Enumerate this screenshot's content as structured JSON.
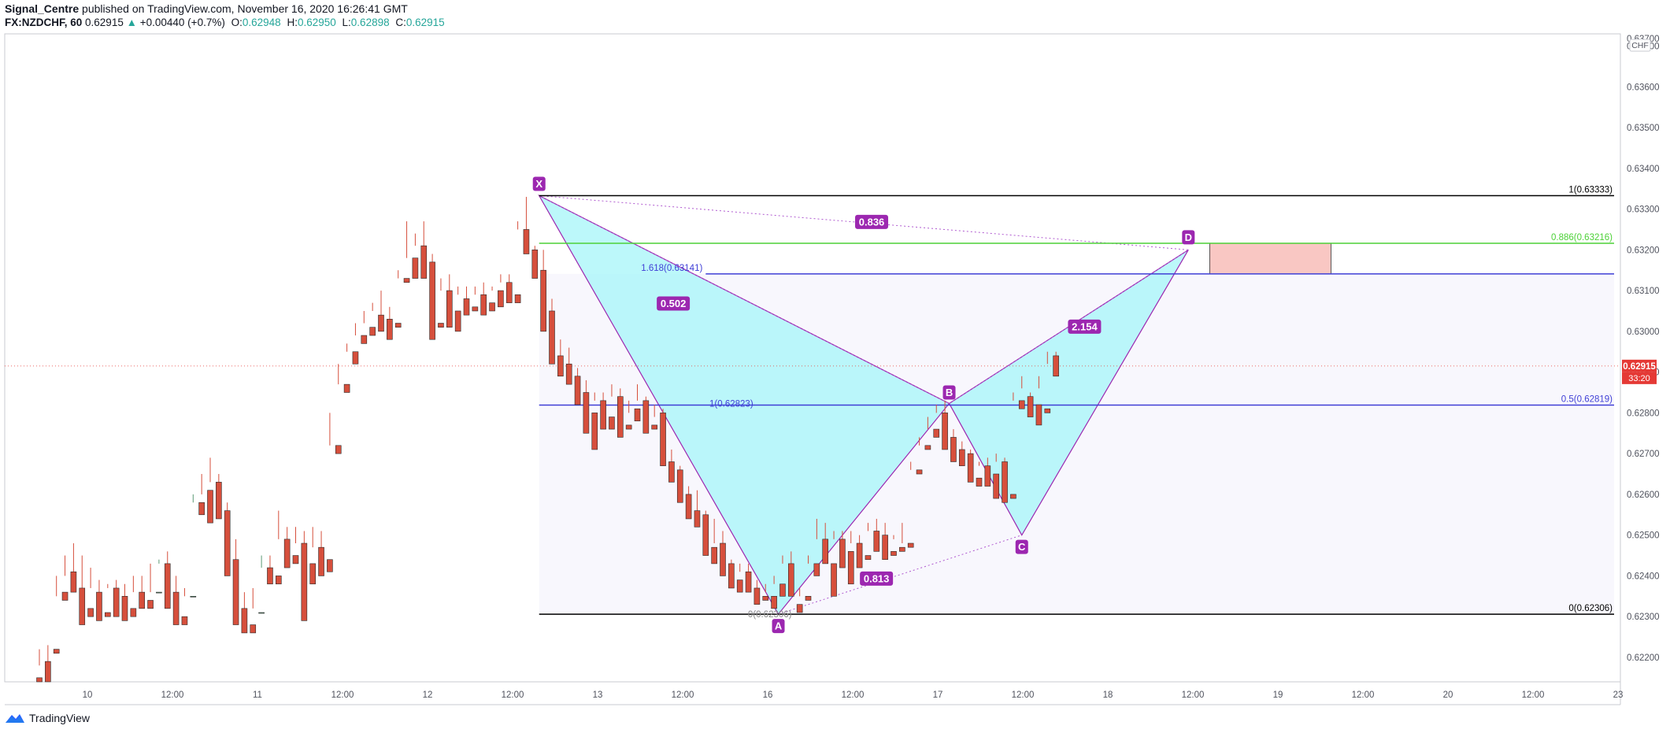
{
  "header": {
    "publisher": "Signal_Centre",
    "published_text": "published on TradingView.com, November 16, 2020 16:26:41 GMT",
    "symbol": "FX:NZDCHF, 60",
    "last": "0.62915",
    "change": "+0.00440 (+0.7%)",
    "open_label": "O:",
    "open": "0.62948",
    "high_label": "H:",
    "high": "0.62950",
    "low_label": "L:",
    "low": "0.62898",
    "close_label": "C:",
    "close": "0.62915"
  },
  "footer": {
    "brand": "TradingView",
    "logo_icon": "tradingview-logo-icon"
  },
  "colors": {
    "up": "#5b9a74",
    "down": "#d64f3c",
    "pattern_fill": "#9ff5f8",
    "pattern_stroke": "#9c27b0",
    "label_bg": "#9c27b0",
    "fib_black": "#000000",
    "fib_green": "#4cd137",
    "fib_blue": "#3f3fd6",
    "target_box": "#f9c7c3",
    "price_line": "#e53935"
  },
  "chart_data": {
    "type": "candlestick",
    "currency": "CHF",
    "ylim": [
      0.6214,
      0.6373
    ],
    "y_ticks": [
      0.622,
      0.623,
      0.624,
      0.625,
      0.626,
      0.627,
      0.628,
      0.629,
      0.63,
      0.631,
      0.632,
      0.633,
      0.634,
      0.635,
      0.636,
      0.637
    ],
    "y_tick_labels": [
      "0.62200",
      "0.62300",
      "0.62400",
      "0.62500",
      "0.62600",
      "0.62700",
      "0.62800",
      "0.62900",
      "0.63000",
      "0.63100",
      "0.63200",
      "0.63300",
      "0.63400",
      "0.63500",
      "0.63600",
      "0.63700"
    ],
    "x_labels": [
      "10",
      "12:00",
      "11",
      "12:00",
      "12",
      "12:00",
      "13",
      "12:00",
      "16",
      "12:00",
      "17",
      "12:00",
      "18",
      "12:00",
      "19",
      "12:00",
      "20",
      "12:00",
      "23"
    ],
    "current_price": "0.62915",
    "countdown": "33:20",
    "grid": false,
    "candles": [
      [
        0.6215,
        0.6222,
        0.6218,
        0.6214
      ],
      [
        0.6219,
        0.6223,
        0.6214,
        0.6214
      ],
      [
        0.6222,
        0.624,
        0.6235,
        0.6221
      ],
      [
        0.6236,
        0.6245,
        0.624,
        0.6234
      ],
      [
        0.6241,
        0.6248,
        0.6238,
        0.6236
      ],
      [
        0.6237,
        0.6245,
        0.6232,
        0.6228
      ],
      [
        0.6232,
        0.6242,
        0.6237,
        0.623
      ],
      [
        0.6236,
        0.6239,
        0.6232,
        0.6229
      ],
      [
        0.6231,
        0.6238,
        0.6237,
        0.623
      ],
      [
        0.6237,
        0.6239,
        0.6234,
        0.623
      ],
      [
        0.6235,
        0.6238,
        0.6232,
        0.6229
      ],
      [
        0.6232,
        0.624,
        0.6236,
        0.623
      ],
      [
        0.6236,
        0.624,
        0.6234,
        0.6232
      ],
      [
        0.6234,
        0.6243,
        0.6236,
        0.6232
      ],
      [
        0.6236,
        0.6244,
        0.6243,
        0.6236
      ],
      [
        0.6243,
        0.6246,
        0.6236,
        0.6232
      ],
      [
        0.6236,
        0.624,
        0.623,
        0.6228
      ],
      [
        0.623,
        0.6237,
        0.6235,
        0.6228
      ],
      [
        0.6235,
        0.626,
        0.6258,
        0.6235
      ],
      [
        0.6258,
        0.6265,
        0.626,
        0.6255
      ],
      [
        0.6261,
        0.6269,
        0.6263,
        0.6253
      ],
      [
        0.6263,
        0.6265,
        0.6256,
        0.6254
      ],
      [
        0.6256,
        0.6258,
        0.6245,
        0.624
      ],
      [
        0.6244,
        0.6249,
        0.6232,
        0.6228
      ],
      [
        0.6232,
        0.6236,
        0.6228,
        0.6226
      ],
      [
        0.6228,
        0.6237,
        0.6232,
        0.6226
      ],
      [
        0.6231,
        0.6245,
        0.6242,
        0.6231
      ],
      [
        0.6242,
        0.6245,
        0.624,
        0.6238
      ],
      [
        0.624,
        0.6256,
        0.6249,
        0.6238
      ],
      [
        0.6249,
        0.6252,
        0.6245,
        0.6242
      ],
      [
        0.6245,
        0.6252,
        0.6248,
        0.6243
      ],
      [
        0.6248,
        0.6251,
        0.6243,
        0.6229
      ],
      [
        0.6243,
        0.6252,
        0.6247,
        0.6238
      ],
      [
        0.6247,
        0.6251,
        0.6244,
        0.624
      ],
      [
        0.6244,
        0.628,
        0.6272,
        0.6241
      ],
      [
        0.6272,
        0.6292,
        0.6287,
        0.627
      ],
      [
        0.6287,
        0.6297,
        0.6295,
        0.6285
      ],
      [
        0.6295,
        0.6302,
        0.6299,
        0.6292
      ],
      [
        0.6299,
        0.6305,
        0.6302,
        0.6297
      ],
      [
        0.6301,
        0.6307,
        0.6305,
        0.6299
      ],
      [
        0.6304,
        0.631,
        0.6303,
        0.63
      ],
      [
        0.6303,
        0.6306,
        0.6302,
        0.6298
      ],
      [
        0.6302,
        0.6315,
        0.6313,
        0.6301
      ],
      [
        0.6313,
        0.6327,
        0.6318,
        0.6312
      ],
      [
        0.6318,
        0.6324,
        0.6321,
        0.6313
      ],
      [
        0.6321,
        0.6327,
        0.6317,
        0.6313
      ],
      [
        0.6317,
        0.6319,
        0.6302,
        0.6298
      ],
      [
        0.6302,
        0.6313,
        0.631,
        0.6301
      ],
      [
        0.631,
        0.6314,
        0.6305,
        0.6301
      ],
      [
        0.6305,
        0.6311,
        0.6309,
        0.63
      ],
      [
        0.6308,
        0.6311,
        0.6306,
        0.6304
      ],
      [
        0.6306,
        0.6311,
        0.6309,
        0.6305
      ],
      [
        0.6309,
        0.6312,
        0.6307,
        0.6304
      ],
      [
        0.6307,
        0.6311,
        0.631,
        0.6305
      ],
      [
        0.631,
        0.6314,
        0.6312,
        0.6306
      ],
      [
        0.6312,
        0.6314,
        0.6309,
        0.6307
      ],
      [
        0.6309,
        0.6327,
        0.6325,
        0.6307
      ],
      [
        0.6325,
        0.6333,
        0.632,
        0.6319
      ],
      [
        0.632,
        0.6321,
        0.6315,
        0.6313
      ],
      [
        0.6315,
        0.632,
        0.6305,
        0.63
      ],
      [
        0.6305,
        0.6308,
        0.6294,
        0.6292
      ],
      [
        0.6294,
        0.6298,
        0.6291,
        0.6289
      ],
      [
        0.6292,
        0.6296,
        0.6289,
        0.6287
      ],
      [
        0.6289,
        0.6291,
        0.6285,
        0.6282
      ],
      [
        0.6285,
        0.6288,
        0.6279,
        0.6275
      ],
      [
        0.628,
        0.6285,
        0.6283,
        0.6271
      ],
      [
        0.6283,
        0.6285,
        0.6278,
        0.6276
      ],
      [
        0.6279,
        0.6287,
        0.6284,
        0.6276
      ],
      [
        0.6284,
        0.6286,
        0.6277,
        0.6274
      ],
      [
        0.6277,
        0.6283,
        0.628,
        0.6276
      ],
      [
        0.6281,
        0.6287,
        0.6283,
        0.6278
      ],
      [
        0.6283,
        0.6284,
        0.6277,
        0.6275
      ],
      [
        0.6277,
        0.6282,
        0.6279,
        0.6276
      ],
      [
        0.628,
        0.6281,
        0.6268,
        0.6267
      ],
      [
        0.6268,
        0.6271,
        0.6266,
        0.6263
      ],
      [
        0.6266,
        0.6267,
        0.626,
        0.6258
      ],
      [
        0.626,
        0.6262,
        0.6256,
        0.6254
      ],
      [
        0.6256,
        0.6261,
        0.6255,
        0.6252
      ],
      [
        0.6255,
        0.6256,
        0.6247,
        0.6245
      ],
      [
        0.6247,
        0.6254,
        0.6248,
        0.6243
      ],
      [
        0.6248,
        0.6251,
        0.6243,
        0.624
      ],
      [
        0.6243,
        0.6244,
        0.6239,
        0.6237
      ],
      [
        0.6239,
        0.6243,
        0.6241,
        0.6236
      ],
      [
        0.6241,
        0.6243,
        0.6237,
        0.6236
      ],
      [
        0.6237,
        0.6239,
        0.6234,
        0.6233
      ],
      [
        0.6235,
        0.6238,
        0.6236,
        0.6234
      ],
      [
        0.6235,
        0.624,
        0.6238,
        0.6232
      ],
      [
        0.6238,
        0.6245,
        0.6243,
        0.6235
      ],
      [
        0.6243,
        0.6246,
        0.6237,
        0.6235
      ],
      [
        0.6233,
        0.6237,
        0.6235,
        0.6231
      ],
      [
        0.6235,
        0.6245,
        0.6243,
        0.6234
      ],
      [
        0.6243,
        0.6254,
        0.6249,
        0.624
      ],
      [
        0.6249,
        0.6253,
        0.6246,
        0.6243
      ],
      [
        0.6243,
        0.6251,
        0.6249,
        0.6235
      ],
      [
        0.6249,
        0.6251,
        0.6245,
        0.6242
      ],
      [
        0.6246,
        0.6251,
        0.6248,
        0.6238
      ],
      [
        0.6248,
        0.625,
        0.6244,
        0.6242
      ],
      [
        0.6245,
        0.6253,
        0.6251,
        0.6244
      ],
      [
        0.6251,
        0.6254,
        0.625,
        0.6246
      ],
      [
        0.625,
        0.6253,
        0.6246,
        0.6244
      ],
      [
        0.6246,
        0.625,
        0.6249,
        0.6245
      ],
      [
        0.6247,
        0.6253,
        0.6248,
        0.6246
      ],
      [
        0.6248,
        0.6268,
        0.6266,
        0.6247
      ],
      [
        0.6266,
        0.6274,
        0.6272,
        0.6265
      ],
      [
        0.6272,
        0.6279,
        0.6276,
        0.6271
      ],
      [
        0.6276,
        0.6282,
        0.628,
        0.6274
      ],
      [
        0.628,
        0.6283,
        0.6274,
        0.6271
      ],
      [
        0.6274,
        0.6276,
        0.627,
        0.6268
      ],
      [
        0.6271,
        0.6273,
        0.6269,
        0.6267
      ],
      [
        0.627,
        0.6271,
        0.6264,
        0.6263
      ],
      [
        0.6264,
        0.6268,
        0.6267,
        0.6262
      ],
      [
        0.6267,
        0.6269,
        0.6265,
        0.6262
      ],
      [
        0.6265,
        0.627,
        0.6268,
        0.6259
      ],
      [
        0.6268,
        0.6269,
        0.626,
        0.6258
      ],
      [
        0.626,
        0.6285,
        0.6283,
        0.6259
      ],
      [
        0.6283,
        0.6289,
        0.6286,
        0.6281
      ],
      [
        0.6284,
        0.6285,
        0.6282,
        0.6279
      ],
      [
        0.6282,
        0.6289,
        0.6286,
        0.6277
      ],
      [
        0.6281,
        0.6295,
        0.6292,
        0.628
      ],
      [
        0.6294,
        0.6295,
        0.629,
        0.6289
      ]
    ],
    "x_first_candle_time_days": 0.0,
    "pattern": {
      "name": "Bat",
      "points": {
        "X": {
          "label": "X",
          "candle": 58.5,
          "price": 0.63333
        },
        "A": {
          "label": "A",
          "candle": 86.5,
          "price": 0.62306
        },
        "B": {
          "label": "B",
          "candle": 106.5,
          "price": 0.62823
        },
        "C": {
          "label": "C",
          "candle": 115.0,
          "price": 0.625
        },
        "D": {
          "label": "D",
          "candle": 134.5,
          "price": 0.632
        }
      },
      "ratios": [
        {
          "text": "0.836",
          "between": [
            "X",
            "D"
          ]
        },
        {
          "text": "0.502",
          "between": [
            "X",
            "B"
          ]
        },
        {
          "text": "2.154",
          "between": [
            "B",
            "D"
          ]
        },
        {
          "text": "0.813",
          "between": [
            "A",
            "C"
          ]
        }
      ]
    },
    "fib_levels": [
      {
        "label": "1(0.63333)",
        "price": 0.63333,
        "color": "#000000"
      },
      {
        "label": "0.886(0.63216)",
        "price": 0.63216,
        "color": "#4cd137"
      },
      {
        "label": "1.618(0.63141)",
        "price": 0.63141,
        "color": "#3f3fd6"
      },
      {
        "label": "0.5(0.62819)",
        "price": 0.62819,
        "color": "#3f3fd6"
      },
      {
        "label": "1(0.62823)",
        "price": 0.62823,
        "color": "#3f3fd6"
      },
      {
        "label": "0(0.62306)",
        "price": 0.62306,
        "color": "#000000"
      },
      {
        "label": "0(0.62306)",
        "price": 0.62306,
        "color": "#888888"
      }
    ],
    "target_zone": {
      "price_top": 0.63216,
      "price_bottom": 0.63141
    }
  }
}
